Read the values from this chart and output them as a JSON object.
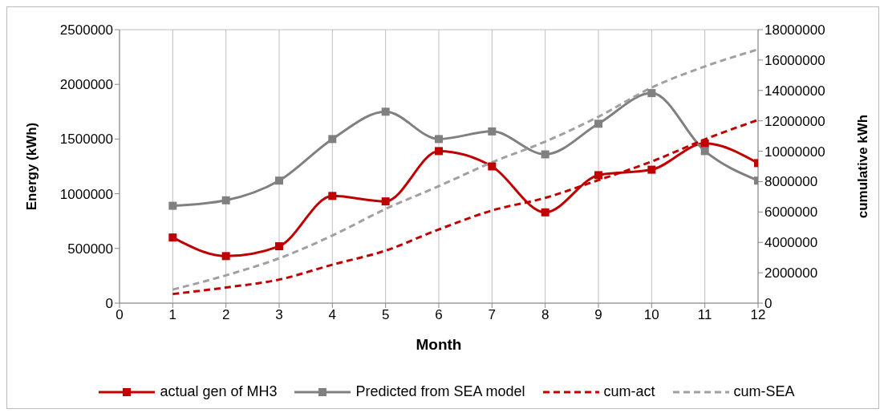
{
  "chart_data": {
    "type": "line",
    "xlabel": "Month",
    "ylabel": "Energy (kWh)",
    "y2label": "cumulative kWh",
    "x": [
      1,
      2,
      3,
      4,
      5,
      6,
      7,
      8,
      9,
      10,
      11,
      12
    ],
    "xlim": [
      0,
      12
    ],
    "xticks": [
      0,
      1,
      2,
      3,
      4,
      5,
      6,
      7,
      8,
      9,
      10,
      11,
      12
    ],
    "ylim": [
      0,
      2500000
    ],
    "yticks": [
      0,
      500000,
      1000000,
      1500000,
      2000000,
      2500000
    ],
    "y2lim": [
      0,
      18000000
    ],
    "y2ticks": [
      0,
      2000000,
      4000000,
      6000000,
      8000000,
      10000000,
      12000000,
      14000000,
      16000000,
      18000000
    ],
    "grid": true,
    "legend": "bottom",
    "series": [
      {
        "name": "actual gen of MH3",
        "color": "#c00000",
        "marker": "square",
        "line_style": "solid",
        "values": [
          600000,
          430000,
          520000,
          980000,
          930000,
          1390000,
          1250000,
          830000,
          1170000,
          1220000,
          1460000,
          1280000
        ]
      },
      {
        "name": "Predicted from SEA model",
        "color": "#808080",
        "marker": "square",
        "line_style": "solid",
        "values": [
          890000,
          940000,
          1120000,
          1500000,
          1750000,
          1500000,
          1570000,
          1360000,
          1640000,
          1920000,
          1390000,
          1120000
        ]
      },
      {
        "name": "cum-act",
        "color": "#c00000",
        "marker": "none",
        "line_style": "dashed",
        "axis": "y2",
        "values": [
          600000,
          1030000,
          1550000,
          2530000,
          3460000,
          4850000,
          6100000,
          6930000,
          8100000,
          9320000,
          10780000,
          12060000
        ]
      },
      {
        "name": "cum-SEA",
        "color": "#a0a0a0",
        "marker": "none",
        "line_style": "dashed",
        "axis": "y2",
        "values": [
          890000,
          1830000,
          2950000,
          4450000,
          6200000,
          7700000,
          9270000,
          10630000,
          12270000,
          14190000,
          15580000,
          16700000
        ]
      }
    ]
  }
}
